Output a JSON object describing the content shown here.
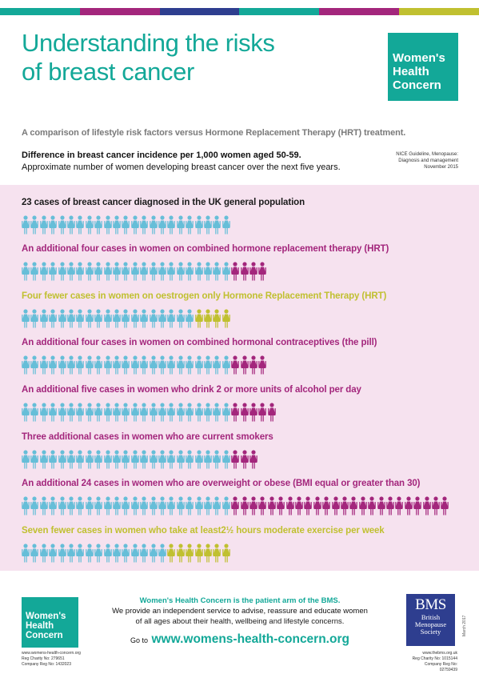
{
  "colors": {
    "teal": "#13a898",
    "blue_figure": "#66bed8",
    "magenta": "#a3267c",
    "olive": "#c0c030",
    "panel_bg": "#f6e2ef",
    "bms_blue": "#2e3e8f",
    "topbar": [
      "#13a898",
      "#a3267c",
      "#2e3e8f",
      "#13a898",
      "#a3267c",
      "#c0c030"
    ]
  },
  "header": {
    "title_line1": "Understanding the risks",
    "title_line2": "of breast cancer",
    "logo_line1": "Women's",
    "logo_line2": "Health",
    "logo_line3": "Concern",
    "subtitle": "A comparison of lifestyle risk factors versus Hormone Replacement Therapy (HRT) treatment.",
    "heading": "Difference in breast cancer incidence per 1,000 women aged 50-59.",
    "subheading": "Approximate number of women developing breast cancer over the next five years.",
    "nice_line1": "NICE Guideline, Menopause:",
    "nice_line2": "Diagnosis and management",
    "nice_line3": "November 2015"
  },
  "rows": [
    {
      "label": "23 cases of breast cancer diagnosed in the UK general population",
      "label_color": "#1a1a1a",
      "base": 23,
      "extra": 0,
      "fewer": 0,
      "extra_color": ""
    },
    {
      "label": "An additional four cases in women on combined hormone replacement therapy (HRT)",
      "label_color": "#a3267c",
      "base": 23,
      "extra": 4,
      "fewer": 0,
      "extra_color": "#a3267c"
    },
    {
      "label": "Four fewer  cases in women on oestrogen only Hormone Replacement Therapy (HRT)",
      "label_color": "#c0c030",
      "base": 19,
      "extra": 0,
      "fewer": 4,
      "extra_color": "#c0c030"
    },
    {
      "label": "An additional four cases in women on combined hormonal contraceptives (the pill)",
      "label_color": "#a3267c",
      "base": 23,
      "extra": 4,
      "fewer": 0,
      "extra_color": "#a3267c"
    },
    {
      "label": "An additional five cases in women who drink 2 or more units of alcohol per day",
      "label_color": "#a3267c",
      "base": 23,
      "extra": 5,
      "fewer": 0,
      "extra_color": "#a3267c"
    },
    {
      "label": "Three additional cases in women who are current smokers",
      "label_color": "#a3267c",
      "base": 23,
      "extra": 3,
      "fewer": 0,
      "extra_color": "#a3267c"
    },
    {
      "label": "An additional 24 cases in women who are overweight or obese (BMI equal or greater than 30)",
      "label_color": "#a3267c",
      "base": 23,
      "extra": 24,
      "fewer": 0,
      "extra_color": "#a3267c"
    },
    {
      "label": "Seven fewer cases in women who take at least2½ hours moderate exercise per week",
      "label_color": "#c0c030",
      "base": 16,
      "extra": 0,
      "fewer": 7,
      "extra_color": "#c0c030"
    }
  ],
  "footer": {
    "logo_line1": "Women's",
    "logo_line2": "Health",
    "logo_line3": "Concern",
    "left_line1": "www.womens-health-concern.org",
    "left_line2": "Reg Charity No: 279651",
    "left_line3": "Company Reg No: 1432023",
    "center_heading": "Women's Health Concern is the patient arm of the BMS.",
    "center_line1": "We provide an independent service to advise, reassure and educate women",
    "center_line2": "of all ages about their health, wellbeing and lifestyle concerns.",
    "goto_prefix": "Go to",
    "goto_url": "www.womens-health-concern.org",
    "bms_title": "BMS",
    "bms_line1": "British",
    "bms_line2": "Menopause",
    "bms_line3": "Society",
    "date": "March 2017",
    "right_line1": "www.thebms.org.uk",
    "right_line2": "Reg Charity No: 1015144",
    "right_line3": "Company Reg No: 02759439"
  }
}
